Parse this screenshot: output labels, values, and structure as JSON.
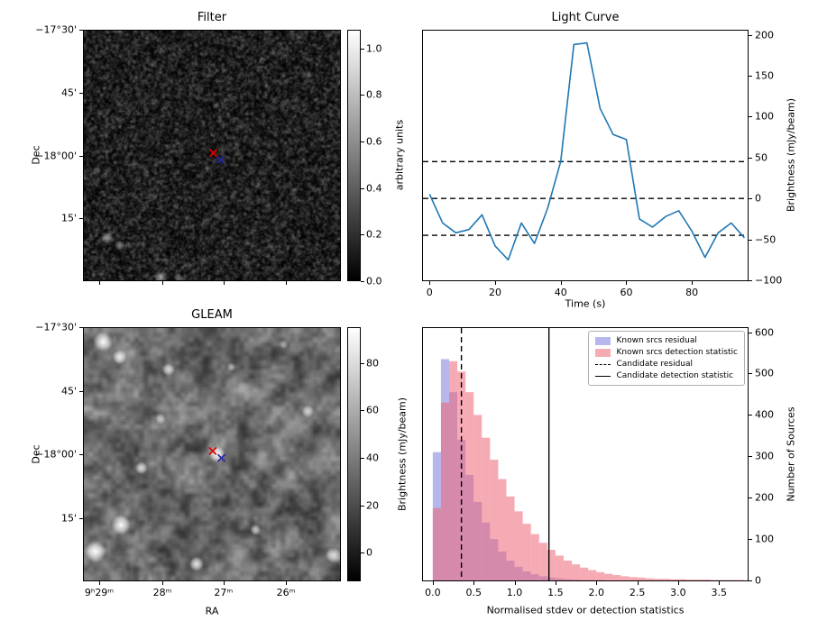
{
  "figure": {
    "background": "#ffffff"
  },
  "chart_data": [
    {
      "type": "heatmap",
      "panel": "filter",
      "title": "Filter",
      "ylabel": "Dec",
      "ytick_labels": [
        "−17°30'",
        "45'",
        "−18°00'",
        "15'"
      ],
      "colorbar": {
        "label": "arbitrary units",
        "range": [
          0,
          1.08
        ],
        "ticks": [
          {
            "v": 0.0,
            "label": "0.0"
          },
          {
            "v": 0.2,
            "label": "0.2"
          },
          {
            "v": 0.4,
            "label": "0.4"
          },
          {
            "v": 0.6,
            "label": "0.6"
          },
          {
            "v": 0.8,
            "label": "0.8"
          },
          {
            "v": 1.0,
            "label": "1.0"
          }
        ]
      },
      "markers": [
        {
          "name": "candidate-position-red-x",
          "color": "#e00000",
          "fx": 0.505,
          "fy": 0.49
        },
        {
          "name": "catalog-position-blue-x",
          "color": "#2222aa",
          "fx": 0.533,
          "fy": 0.518
        }
      ]
    },
    {
      "type": "line",
      "title": "Light Curve",
      "xlabel": "Time (s)",
      "ylabel": "Brightness (mJy/beam)",
      "xlim": [
        -2,
        97
      ],
      "ylim": [
        -100,
        205
      ],
      "line_color": "#1f77b4",
      "xticks": [
        {
          "v": 0,
          "label": "0"
        },
        {
          "v": 20,
          "label": "20"
        },
        {
          "v": 40,
          "label": "40"
        },
        {
          "v": 60,
          "label": "60"
        },
        {
          "v": 80,
          "label": "80"
        }
      ],
      "yticks": [
        {
          "v": -100,
          "label": "−100"
        },
        {
          "v": -50,
          "label": "−50"
        },
        {
          "v": 0,
          "label": "0"
        },
        {
          "v": 50,
          "label": "50"
        },
        {
          "v": 100,
          "label": "100"
        },
        {
          "v": 150,
          "label": "150"
        },
        {
          "v": 200,
          "label": "200"
        }
      ],
      "x": [
        0,
        4,
        8,
        12,
        16,
        20,
        24,
        28,
        32,
        36,
        40,
        44,
        48,
        52,
        56,
        60,
        64,
        68,
        72,
        76,
        80,
        84,
        88,
        92,
        96
      ],
      "y": [
        5,
        -30,
        -42,
        -38,
        -20,
        -58,
        -75,
        -30,
        -55,
        -12,
        45,
        188,
        190,
        110,
        78,
        72,
        -25,
        -35,
        -22,
        -15,
        -40,
        -72,
        -42,
        -30,
        -48
      ],
      "hlines": [
        {
          "y": 45,
          "style": "dashed"
        },
        {
          "y": 0,
          "style": "dashed"
        },
        {
          "y": -45,
          "style": "dashed"
        }
      ]
    },
    {
      "type": "heatmap",
      "panel": "gleam",
      "title": "GLEAM",
      "xlabel": "RA",
      "ylabel": "Dec",
      "xticks": [
        {
          "fx": 0.063,
          "label": "9ʰ29ᵐ"
        },
        {
          "fx": 0.308,
          "label": "28ᵐ"
        },
        {
          "fx": 0.545,
          "label": "27ᵐ"
        },
        {
          "fx": 0.787,
          "label": "26ᵐ"
        }
      ],
      "ytick_labels": [
        "−17°30'",
        "45'",
        "−18°00'",
        "15'"
      ],
      "colorbar": {
        "label": "Brightness (mJy/beam)",
        "range": [
          -12,
          95
        ],
        "ticks": [
          {
            "v": 0,
            "label": "0"
          },
          {
            "v": 20,
            "label": "20"
          },
          {
            "v": 40,
            "label": "40"
          },
          {
            "v": 60,
            "label": "60"
          },
          {
            "v": 80,
            "label": "80"
          }
        ]
      },
      "markers": [
        {
          "name": "candidate-position-red-x",
          "color": "#e00000",
          "fx": 0.503,
          "fy": 0.487
        },
        {
          "name": "catalog-position-blue-x",
          "color": "#2222aa",
          "fx": 0.537,
          "fy": 0.515
        }
      ]
    },
    {
      "type": "bar",
      "subtype": "histogram",
      "title": "",
      "xlabel": "Normalised stdev or detection statistics",
      "ylabel": "Number of Sources",
      "xlim": [
        -0.12,
        3.85
      ],
      "ylim": [
        0,
        610
      ],
      "bin_start": 0.0,
      "bin_width": 0.1,
      "xticks": [
        {
          "v": 0.0,
          "label": "0.0"
        },
        {
          "v": 0.5,
          "label": "0.5"
        },
        {
          "v": 1.0,
          "label": "1.0"
        },
        {
          "v": 1.5,
          "label": "1.5"
        },
        {
          "v": 2.0,
          "label": "2.0"
        },
        {
          "v": 2.5,
          "label": "2.5"
        },
        {
          "v": 3.0,
          "label": "3.0"
        },
        {
          "v": 3.5,
          "label": "3.5"
        }
      ],
      "yticks": [
        {
          "v": 0,
          "label": "0"
        },
        {
          "v": 100,
          "label": "100"
        },
        {
          "v": 200,
          "label": "200"
        },
        {
          "v": 300,
          "label": "300"
        },
        {
          "v": 400,
          "label": "400"
        },
        {
          "v": 500,
          "label": "500"
        },
        {
          "v": 600,
          "label": "600"
        }
      ],
      "series": [
        {
          "name": "Known srcs residual",
          "color": "#7070dd",
          "opacity": 0.5,
          "values": [
            310,
            535,
            455,
            340,
            255,
            190,
            140,
            100,
            70,
            48,
            33,
            22,
            15,
            10,
            7,
            5,
            3,
            2,
            1,
            1,
            1,
            0,
            0,
            0,
            0,
            0,
            0,
            0,
            0,
            0,
            0,
            0,
            0,
            0,
            0,
            0,
            0,
            0
          ]
        },
        {
          "name": "Known srcs detection statistic",
          "color": "#ee6677",
          "opacity": 0.55,
          "values": [
            175,
            430,
            530,
            505,
            455,
            400,
            345,
            292,
            245,
            203,
            167,
            137,
            112,
            91,
            74,
            60,
            48,
            39,
            31,
            25,
            20,
            16,
            13,
            10,
            8,
            7,
            5,
            4,
            4,
            3,
            3,
            2,
            2,
            2,
            1,
            1,
            1,
            1
          ]
        }
      ],
      "vlines": [
        {
          "label": "Candidate residual",
          "x": 0.35,
          "style": "dashed"
        },
        {
          "label": "Candidate detection statistic",
          "x": 1.42,
          "style": "solid"
        }
      ]
    }
  ]
}
